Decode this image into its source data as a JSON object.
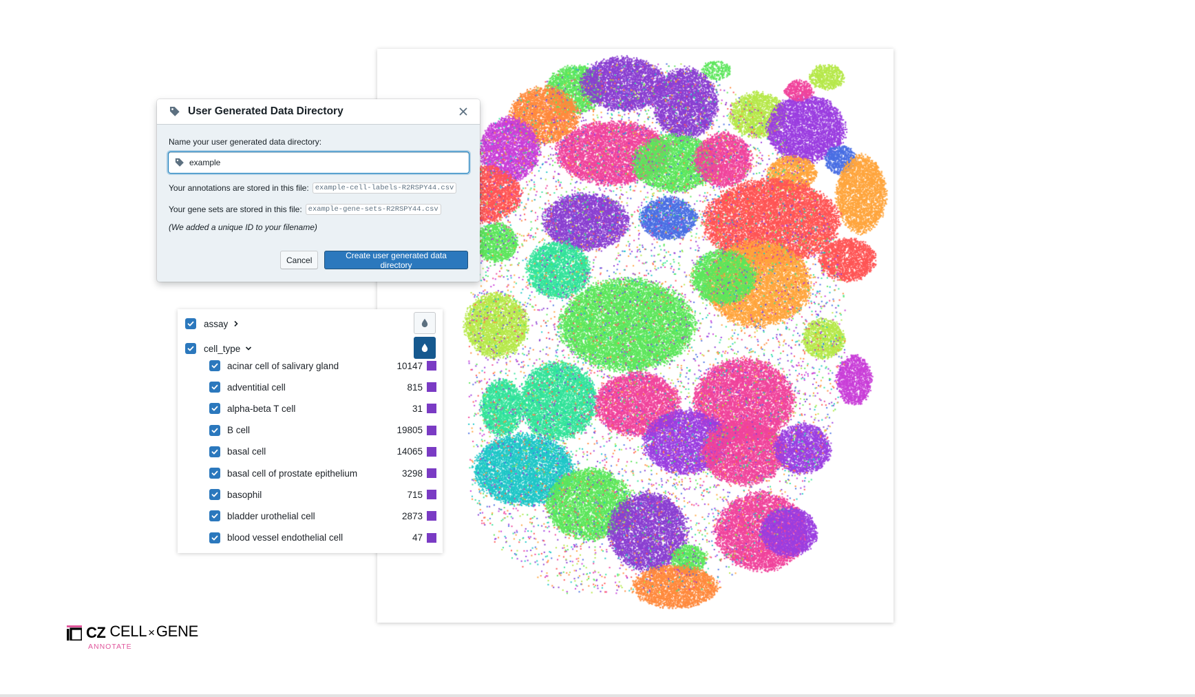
{
  "dialog": {
    "title": "User Generated Data Directory",
    "name_label": "Name your user generated data directory:",
    "name_value": "example",
    "annotations_label": "Your annotations are stored in this file:",
    "annotations_file": "example-cell-labels-R2RSPY44.csv",
    "genesets_label": "Your gene sets are stored in this file:",
    "genesets_file": "example-gene-sets-R2RSPY44.csv",
    "unique_note": "(We added a unique ID to your filename)",
    "cancel_label": "Cancel",
    "create_label": "Create user generated data directory",
    "icons": [
      "tag-icon",
      "close-icon"
    ],
    "accent_color": "#2b78bd"
  },
  "categories": {
    "assay": {
      "label": "assay",
      "checked": true,
      "expanded": false,
      "icon": "chevron-right-icon"
    },
    "cell_type": {
      "label": "cell_type",
      "checked": true,
      "expanded": true,
      "icon": "chevron-down-icon",
      "color_by_active": true,
      "values": [
        {
          "label": "acinar cell of salivary gland",
          "count": "10147"
        },
        {
          "label": "adventitial cell",
          "count": "815"
        },
        {
          "label": "alpha-beta T cell",
          "count": "31"
        },
        {
          "label": "B cell",
          "count": "19805"
        },
        {
          "label": "basal cell",
          "count": "14065"
        },
        {
          "label": "basal cell of prostate epithelium",
          "count": "3298"
        },
        {
          "label": "basophil",
          "count": "715"
        },
        {
          "label": "bladder urothelial cell",
          "count": "2873"
        },
        {
          "label": "blood vessel endothelial cell",
          "count": "47"
        }
      ],
      "swatch_color": "#7a3bc4"
    }
  },
  "logo": {
    "mark": "CZ",
    "name_left": "CELL",
    "times": "×",
    "name_right": "GENE",
    "sub": "ANNOTATE",
    "sub_color": "#e0559b"
  },
  "embedding": {
    "palette": [
      "#8a3fd1",
      "#f0449c",
      "#ff8a3d",
      "#5de65c",
      "#b6e84a",
      "#33e39a",
      "#1fc7c7",
      "#ff5555",
      "#4a6fe3",
      "#9b3ee0",
      "#c93fd8",
      "#ffa53d"
    ]
  }
}
